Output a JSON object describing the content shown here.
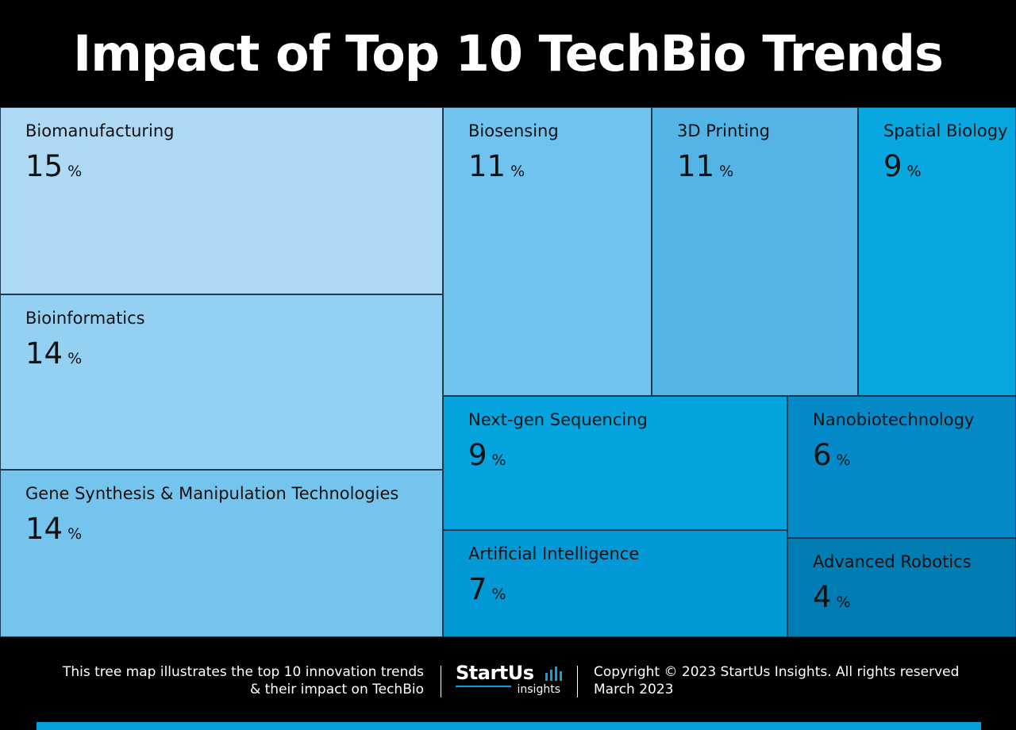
{
  "title": "Impact of Top 10 TechBio Trends",
  "chart_data": {
    "type": "treemap",
    "title": "Impact of Top 10 TechBio Trends",
    "unit": "%",
    "items": [
      {
        "label": "Biomanufacturing",
        "value": 15,
        "color": "#aed9f4"
      },
      {
        "label": "Bioinformatics",
        "value": 14,
        "color": "#93d0f2"
      },
      {
        "label": "Gene Synthesis & Manipulation Technologies",
        "value": 14,
        "color": "#74c4ee"
      },
      {
        "label": "Biosensing",
        "value": 11,
        "color": "#70c3ee"
      },
      {
        "label": "3D Printing",
        "value": 11,
        "color": "#55b4e6"
      },
      {
        "label": "Spatial Biology",
        "value": 9,
        "color": "#08a7e0"
      },
      {
        "label": "Next-gen Sequencing",
        "value": 9,
        "color": "#05a4de"
      },
      {
        "label": "Artificial Intelligence",
        "value": 7,
        "color": "#0398d6"
      },
      {
        "label": "Nanobiotechnology",
        "value": 6,
        "color": "#048ac8"
      },
      {
        "label": "Advanced Robotics",
        "value": 4,
        "color": "#027db4"
      }
    ]
  },
  "footer": {
    "description_line1": "This tree map illustrates the top 10 innovation trends",
    "description_line2": "& their impact on TechBio",
    "logo_text": "StartUs",
    "logo_subtext": "insights",
    "copyright_line1": "Copyright © 2023 StartUs Insights. All rights reserved",
    "copyright_line2": "March 2023",
    "accent_color": "#06a0dc"
  }
}
